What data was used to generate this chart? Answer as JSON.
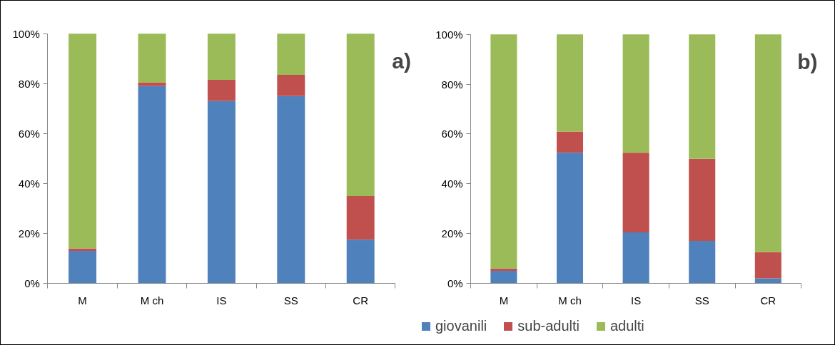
{
  "chart_data": [
    {
      "type": "bar",
      "stacked": true,
      "categories": [
        "M",
        "M ch",
        "IS",
        "SS",
        "CR"
      ],
      "annotations": [
        "a)"
      ],
      "series": [
        {
          "color": "#4f81bd",
          "values": [
            13,
            79,
            73,
            75,
            17.5
          ]
        },
        {
          "color": "#c0504d",
          "values": [
            1,
            1.5,
            8.5,
            8.5,
            17.5
          ]
        },
        {
          "color": "#9bbb59",
          "values": [
            86,
            19.5,
            18.5,
            16.5,
            65
          ]
        }
      ],
      "ylim": [
        0,
        100
      ],
      "yticks": [
        {
          "value": 0,
          "label": "0%"
        },
        {
          "value": 20,
          "label": "20%"
        },
        {
          "value": 40,
          "label": "40%"
        },
        {
          "value": 60,
          "label": "60%"
        },
        {
          "value": 80,
          "label": "80%"
        },
        {
          "value": 100,
          "label": "100%"
        }
      ]
    },
    {
      "type": "bar",
      "stacked": true,
      "categories": [
        "M",
        "M ch",
        "IS",
        "SS",
        "CR"
      ],
      "legend": "bottom",
      "annotations": [
        "b)"
      ],
      "series": [
        {
          "name": "giovanili",
          "color": "#4f81bd",
          "values": [
            5,
            52.5,
            20.5,
            17,
            2
          ]
        },
        {
          "name": "sub-adulti",
          "color": "#c0504d",
          "values": [
            1,
            8.5,
            32,
            33,
            10.5
          ]
        },
        {
          "name": "adulti",
          "color": "#9bbb59",
          "values": [
            94,
            39,
            47.5,
            50,
            87.5
          ]
        }
      ],
      "ylim": [
        0,
        100
      ],
      "yticks": [
        {
          "value": 0,
          "label": "0%"
        },
        {
          "value": 20,
          "label": "20%"
        },
        {
          "value": 40,
          "label": "40%"
        },
        {
          "value": 60,
          "label": "60%"
        },
        {
          "value": 80,
          "label": "80%"
        },
        {
          "value": 100,
          "label": "100%"
        }
      ]
    }
  ]
}
